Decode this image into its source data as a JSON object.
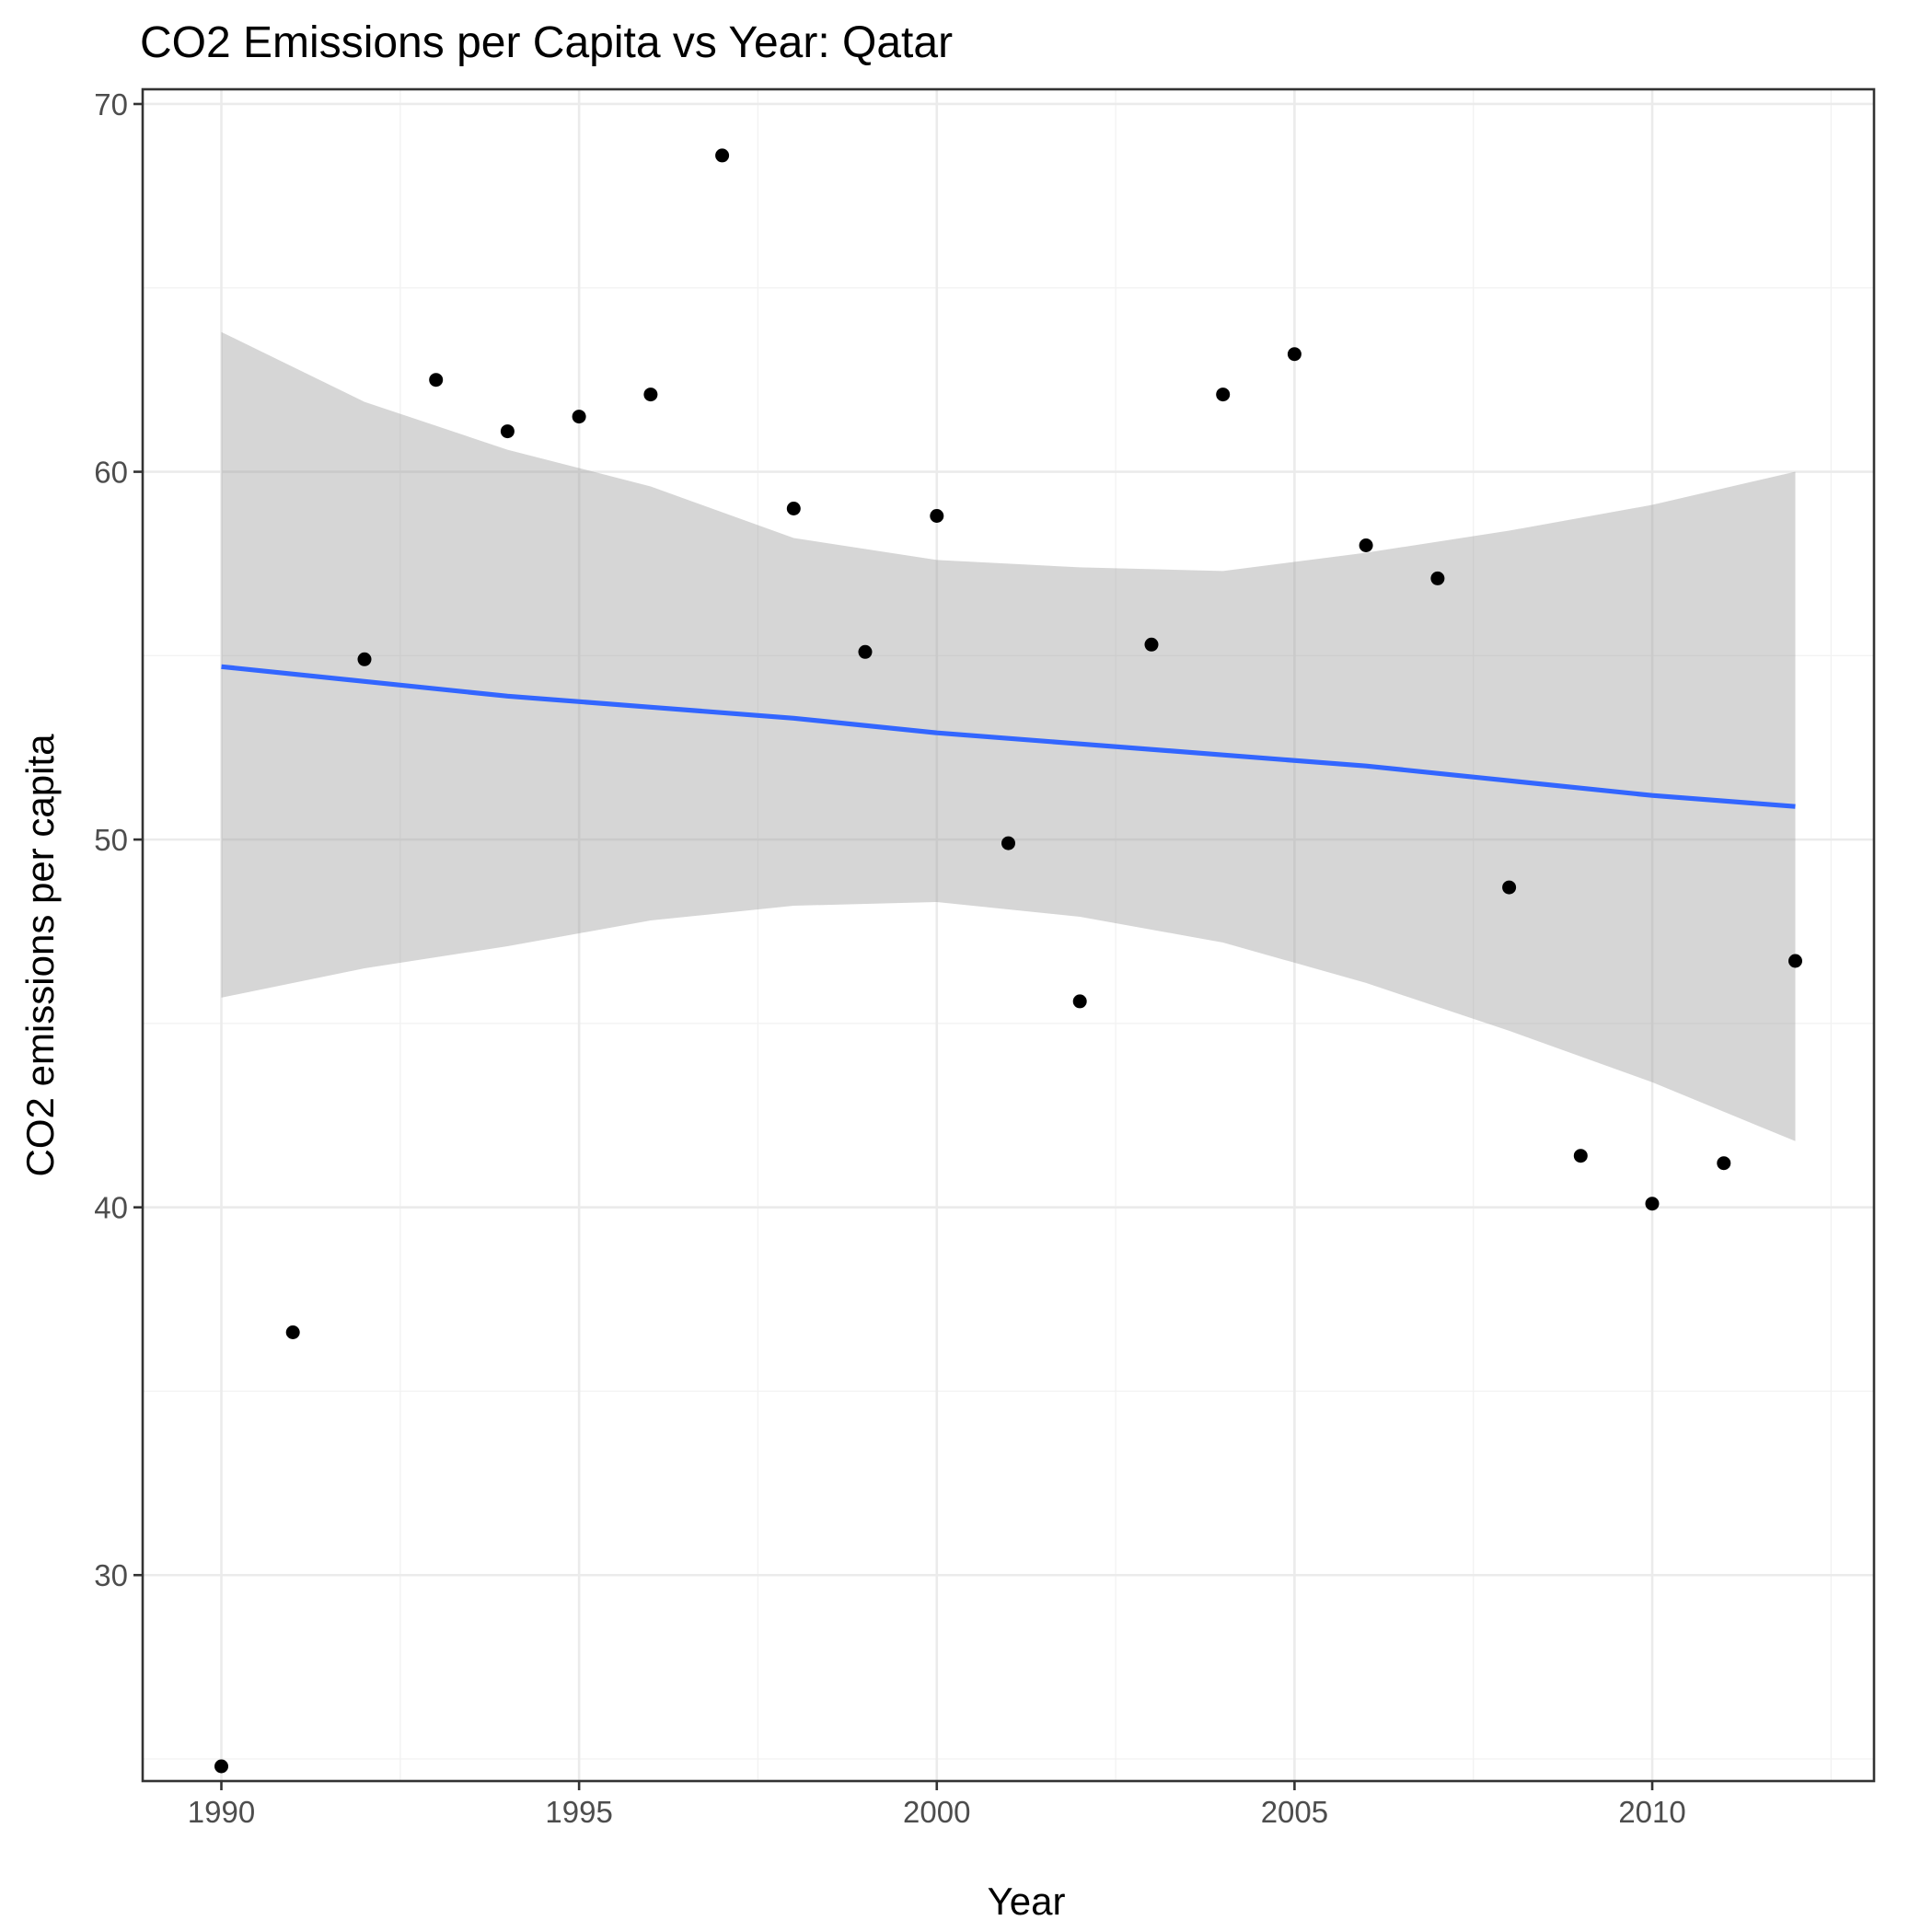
{
  "chart_data": {
    "type": "scatter",
    "title": "CO2 Emissions per Capita vs Year: Qatar",
    "xlabel": "Year",
    "ylabel": "CO2 emissions per capita",
    "xlim": [
      1988.9,
      2013.1
    ],
    "ylim": [
      24.4,
      70.4
    ],
    "x_ticks": [
      1990,
      1995,
      2000,
      2005,
      2010
    ],
    "y_ticks": [
      30,
      40,
      50,
      60,
      70
    ],
    "x_tick_labels": [
      "1990",
      "1995",
      "2000",
      "2005",
      "2010"
    ],
    "y_tick_labels": [
      "30",
      "40",
      "50",
      "60",
      "70"
    ],
    "grid": true,
    "legend": "none",
    "points": [
      {
        "x": 1990,
        "y": 24.8
      },
      {
        "x": 1991,
        "y": 36.6
      },
      {
        "x": 1992,
        "y": 54.9
      },
      {
        "x": 1993,
        "y": 62.5
      },
      {
        "x": 1994,
        "y": 61.1
      },
      {
        "x": 1995,
        "y": 61.5
      },
      {
        "x": 1996,
        "y": 62.1
      },
      {
        "x": 1997,
        "y": 68.6
      },
      {
        "x": 1998,
        "y": 59.0
      },
      {
        "x": 1999,
        "y": 55.1
      },
      {
        "x": 2000,
        "y": 58.8
      },
      {
        "x": 2001,
        "y": 49.9
      },
      {
        "x": 2002,
        "y": 45.6
      },
      {
        "x": 2003,
        "y": 55.3
      },
      {
        "x": 2004,
        "y": 62.1
      },
      {
        "x": 2005,
        "y": 63.2
      },
      {
        "x": 2006,
        "y": 58.0
      },
      {
        "x": 2007,
        "y": 57.1
      },
      {
        "x": 2008,
        "y": 48.7
      },
      {
        "x": 2009,
        "y": 41.4
      },
      {
        "x": 2010,
        "y": 40.1
      },
      {
        "x": 2011,
        "y": 41.2
      },
      {
        "x": 2012,
        "y": 46.7
      }
    ],
    "trend_line": {
      "method": "linear",
      "color": "#3366ff",
      "x": [
        1990,
        1992,
        1994,
        1996,
        1998,
        2000,
        2002,
        2004,
        2006,
        2008,
        2010,
        2012
      ],
      "y": [
        54.7,
        54.3,
        53.9,
        53.6,
        53.3,
        52.9,
        52.6,
        52.3,
        52.0,
        51.6,
        51.2,
        50.9
      ],
      "ci_lower": [
        45.7,
        46.5,
        47.1,
        47.8,
        48.2,
        48.3,
        47.9,
        47.2,
        46.1,
        44.8,
        43.4,
        41.8
      ],
      "ci_upper": [
        63.8,
        61.9,
        60.6,
        59.6,
        58.2,
        57.6,
        57.4,
        57.3,
        57.8,
        58.4,
        59.1,
        60.0
      ],
      "ci_color": "#999999"
    },
    "point_color": "#000000"
  }
}
